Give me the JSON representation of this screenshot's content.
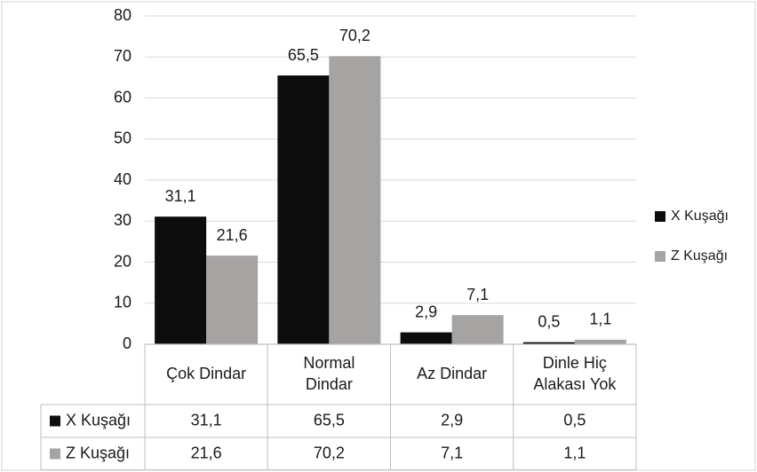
{
  "chart_data": {
    "type": "bar",
    "categories": [
      "Çok Dindar",
      "Normal Dindar",
      "Az Dindar",
      "Dinle Hiç Alakası Yok"
    ],
    "category_lines": [
      [
        "Çok Dindar"
      ],
      [
        "Normal",
        "Dindar"
      ],
      [
        "Az Dindar"
      ],
      [
        "Dinle Hiç",
        "Alakası Yok"
      ]
    ],
    "series": [
      {
        "name": "X Kuşağı",
        "color": "#0d0d0d",
        "values": [
          31.1,
          65.5,
          2.9,
          0.5
        ],
        "labels": [
          "31,1",
          "65,5",
          "2,9",
          "0,5"
        ]
      },
      {
        "name": "Z Kuşağı",
        "color": "#a6a3a3",
        "values": [
          21.6,
          70.2,
          7.1,
          1.1
        ],
        "labels": [
          "21,6",
          "70,2",
          "7,1",
          "1,1"
        ]
      }
    ],
    "ylim": [
      0,
      80
    ],
    "yticks": [
      0,
      10,
      20,
      30,
      40,
      50,
      60,
      70,
      80
    ],
    "grid": true,
    "legend": "right",
    "data_table": true
  }
}
